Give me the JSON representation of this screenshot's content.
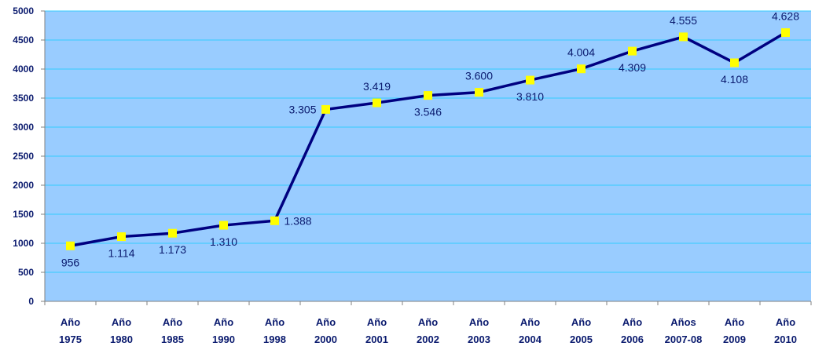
{
  "chart_data": {
    "type": "line",
    "title": "",
    "xlabel": "",
    "ylabel": "",
    "ylim": [
      0,
      5000
    ],
    "yticks": [
      0,
      500,
      1000,
      1500,
      2000,
      2500,
      3000,
      3500,
      4000,
      4500,
      5000
    ],
    "grid": true,
    "legend": "none",
    "categories": [
      [
        "Año",
        "1975"
      ],
      [
        "Año",
        "1980"
      ],
      [
        "Año",
        "1985"
      ],
      [
        "Año",
        "1990"
      ],
      [
        "Año",
        "1998"
      ],
      [
        "Año",
        "2000"
      ],
      [
        "Año",
        "2001"
      ],
      [
        "Año",
        "2002"
      ],
      [
        "Año",
        "2003"
      ],
      [
        "Año",
        "2004"
      ],
      [
        "Año",
        "2005"
      ],
      [
        "Año",
        "2006"
      ],
      [
        "Años",
        "2007-08"
      ],
      [
        "Año",
        "2009"
      ],
      [
        "Año",
        "2010"
      ]
    ],
    "series": [
      {
        "values": [
          956,
          1114,
          1173,
          1310,
          1388,
          3305,
          3419,
          3546,
          3600,
          3810,
          4004,
          4309,
          4555,
          4108,
          4628
        ],
        "labels": [
          "956",
          "1.114",
          "1.173",
          "1.310",
          "1.388",
          "3.305",
          "3.419",
          "3.546",
          "3.600",
          "3.810",
          "4.004",
          "4.309",
          "4.555",
          "4.108",
          "4.628"
        ],
        "label_positions": [
          "below",
          "below",
          "below",
          "below",
          "right",
          "left",
          "above",
          "below",
          "above",
          "below",
          "above",
          "below",
          "above",
          "below",
          "above"
        ]
      }
    ],
    "colors": {
      "plot_background": "#99ccff",
      "gridline": "#33ccff",
      "line": "#000080",
      "marker": "#ffff00",
      "text": "#0a1a6e"
    }
  }
}
